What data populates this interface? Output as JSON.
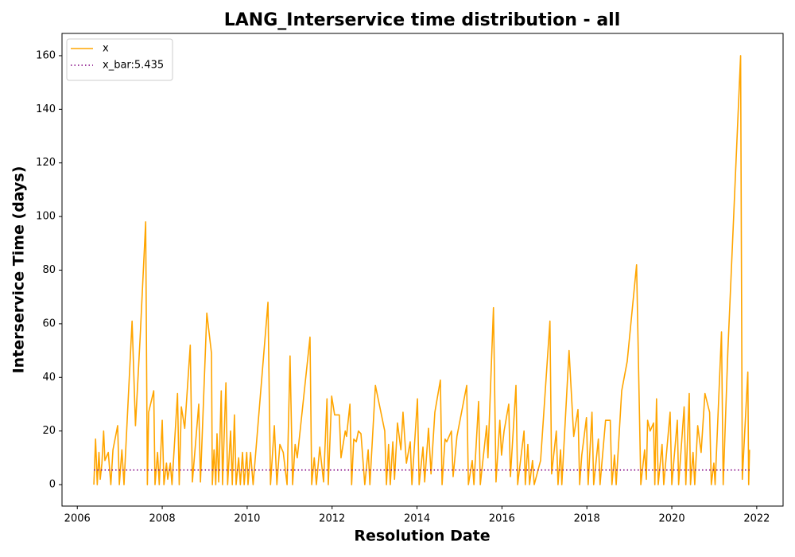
{
  "chart_data": {
    "type": "line",
    "title": "LANG_Interservice time distribution - all",
    "x_label": "Resolution Date",
    "y_label": "Interservice Time (days)",
    "series": [
      {
        "name": "x",
        "color": "#ffa500",
        "x": [
          2006.39,
          2006.43,
          2006.47,
          2006.51,
          2006.54,
          2006.58,
          2006.62,
          2006.65,
          2006.73,
          2006.79,
          2006.84,
          2006.95,
          2006.99,
          2007.05,
          2007.1,
          2007.29,
          2007.37,
          2007.48,
          2007.61,
          2007.65,
          2007.68,
          2007.8,
          2007.83,
          2007.89,
          2007.93,
          2008.0,
          2008.04,
          2008.1,
          2008.13,
          2008.19,
          2008.23,
          2008.36,
          2008.4,
          2008.45,
          2008.53,
          2008.66,
          2008.71,
          2008.86,
          2008.9,
          2009.05,
          2009.16,
          2009.18,
          2009.22,
          2009.26,
          2009.29,
          2009.33,
          2009.39,
          2009.42,
          2009.5,
          2009.54,
          2009.61,
          2009.65,
          2009.7,
          2009.74,
          2009.8,
          2009.84,
          2009.89,
          2009.93,
          2009.99,
          2010.02,
          2010.08,
          2010.14,
          2010.49,
          2010.55,
          2010.64,
          2010.7,
          2010.77,
          2010.85,
          2010.94,
          2011.01,
          2011.07,
          2011.13,
          2011.18,
          2011.26,
          2011.48,
          2011.52,
          2011.58,
          2011.63,
          2011.71,
          2011.8,
          2011.88,
          2011.91,
          2011.99,
          2012.06,
          2012.17,
          2012.21,
          2012.31,
          2012.34,
          2012.42,
          2012.46,
          2012.51,
          2012.57,
          2012.62,
          2012.68,
          2012.77,
          2012.85,
          2012.89,
          2013.02,
          2013.24,
          2013.28,
          2013.33,
          2013.37,
          2013.43,
          2013.47,
          2013.54,
          2013.62,
          2013.67,
          2013.75,
          2013.84,
          2013.88,
          2014.01,
          2014.05,
          2014.14,
          2014.18,
          2014.27,
          2014.33,
          2014.42,
          2014.55,
          2014.59,
          2014.66,
          2014.7,
          2014.81,
          2014.85,
          2014.94,
          2015.17,
          2015.21,
          2015.3,
          2015.34,
          2015.45,
          2015.49,
          2015.64,
          2015.67,
          2015.8,
          2015.86,
          2015.95,
          2015.99,
          2016.05,
          2016.16,
          2016.2,
          2016.33,
          2016.37,
          2016.52,
          2016.55,
          2016.61,
          2016.65,
          2016.72,
          2016.76,
          2016.91,
          2017.13,
          2017.17,
          2017.28,
          2017.32,
          2017.38,
          2017.41,
          2017.58,
          2017.69,
          2017.79,
          2017.83,
          2017.88,
          2017.99,
          2018.03,
          2018.12,
          2018.16,
          2018.27,
          2018.31,
          2018.44,
          2018.55,
          2018.59,
          2018.65,
          2018.69,
          2018.82,
          2018.95,
          2019.17,
          2019.27,
          2019.36,
          2019.4,
          2019.43,
          2019.49,
          2019.57,
          2019.6,
          2019.64,
          2019.68,
          2019.77,
          2019.81,
          2019.96,
          2020.0,
          2020.13,
          2020.16,
          2020.29,
          2020.33,
          2020.41,
          2020.44,
          2020.5,
          2020.54,
          2020.61,
          2020.69,
          2020.78,
          2020.89,
          2020.93,
          2020.99,
          2021.02,
          2021.17,
          2021.21,
          2021.32,
          2021.62,
          2021.66,
          2021.79,
          2021.81,
          2021.83
        ],
        "values": [
          0,
          17,
          0,
          12,
          2,
          8,
          20,
          9,
          12,
          0,
          13,
          22,
          0,
          13,
          0,
          61,
          22,
          55,
          98,
          0,
          27,
          35,
          0,
          12,
          0,
          24,
          0,
          8,
          2,
          8,
          0,
          34,
          0,
          29,
          21,
          52,
          1,
          30,
          1,
          64,
          49,
          0,
          13,
          0,
          19,
          1,
          35,
          0,
          38,
          0,
          20,
          0,
          26,
          0,
          10,
          0,
          12,
          0,
          12,
          0,
          12,
          0,
          68,
          0,
          22,
          0,
          15,
          12,
          0,
          48,
          0,
          15,
          10,
          22,
          55,
          0,
          10,
          0,
          14,
          1,
          32,
          0,
          33,
          26,
          26,
          10,
          20,
          18,
          30,
          0,
          17,
          16,
          20,
          19,
          0,
          13,
          0,
          37,
          20,
          0,
          15,
          0,
          16,
          2,
          23,
          13,
          27,
          8,
          16,
          0,
          32,
          0,
          14,
          1,
          21,
          4,
          27,
          39,
          0,
          17,
          16,
          20,
          3,
          18,
          37,
          0,
          9,
          0,
          31,
          0,
          22,
          10,
          66,
          1,
          24,
          11,
          20,
          30,
          3,
          37,
          0,
          20,
          0,
          15,
          0,
          9,
          0,
          9,
          61,
          4,
          20,
          0,
          13,
          0,
          50,
          18,
          28,
          0,
          11,
          25,
          0,
          27,
          0,
          17,
          0,
          24,
          24,
          0,
          11,
          0,
          35,
          46,
          82,
          0,
          13,
          2,
          24,
          20,
          23,
          0,
          32,
          0,
          15,
          0,
          27,
          0,
          24,
          0,
          29,
          0,
          34,
          0,
          12,
          0,
          22,
          12,
          34,
          27,
          0,
          8,
          0,
          57,
          0,
          50,
          160,
          2,
          42,
          0,
          13
        ]
      }
    ],
    "mean_line": {
      "name": "x_bar:5.435",
      "value": 5.435,
      "color": "#800080"
    },
    "xlim": [
      2005.64,
      2022.62
    ],
    "xticks": [
      2006,
      2008,
      2010,
      2012,
      2014,
      2016,
      2018,
      2020,
      2022
    ],
    "ylim": [
      -8,
      168.3
    ],
    "yticks": [
      0,
      20,
      40,
      60,
      80,
      100,
      120,
      140,
      160
    ],
    "grid": false,
    "legend": "upper left"
  }
}
